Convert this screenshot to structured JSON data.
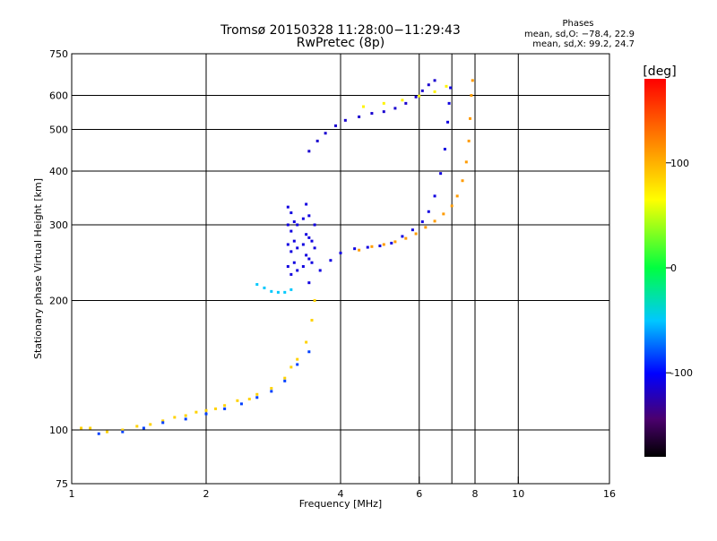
{
  "header": {
    "title_line1": "Tromsø 20150328 11:28:00−11:29:43",
    "title_line2": "RwPretec (8p)"
  },
  "phase_info": {
    "title": "Phases",
    "o_line": "mean, sd,O: −78.4, 22.9",
    "x_line": "mean, sd,X:  99.2, 24.7"
  },
  "chart_data": {
    "type": "scatter",
    "xlabel": "Frequency [MHz]",
    "ylabel": "Stationary phase Virtual Height [km]",
    "xscale": "log",
    "yscale": "log",
    "xlim": [
      1,
      16
    ],
    "ylim": [
      75,
      750
    ],
    "x_ticks": [
      1,
      2,
      4,
      6,
      8,
      10,
      16
    ],
    "y_ticks": [
      75,
      100,
      200,
      300,
      400,
      500,
      600,
      750
    ],
    "x_grid": [
      2,
      4,
      6,
      7.1,
      8,
      10
    ],
    "y_grid": [
      100,
      200,
      300,
      400,
      500,
      600
    ],
    "colorbar": {
      "label": "[deg]",
      "range": [
        -180,
        180
      ],
      "ticks": [
        100,
        0,
        -100
      ]
    },
    "traces": [
      {
        "role": "E-region low",
        "phase_deg": 85,
        "points": [
          [
            1.05,
            101
          ],
          [
            1.1,
            101
          ],
          [
            1.2,
            99
          ],
          [
            1.3,
            100
          ],
          [
            1.4,
            102
          ],
          [
            1.5,
            103
          ],
          [
            1.6,
            105
          ],
          [
            1.7,
            107
          ],
          [
            1.8,
            108
          ],
          [
            1.9,
            110
          ],
          [
            2.0,
            111
          ],
          [
            2.1,
            112
          ],
          [
            2.2,
            114
          ],
          [
            2.35,
            117
          ],
          [
            2.5,
            118
          ],
          [
            2.6,
            121
          ],
          [
            2.8,
            125
          ],
          [
            3.0,
            132
          ],
          [
            3.1,
            140
          ],
          [
            3.2,
            146
          ],
          [
            3.35,
            160
          ],
          [
            3.45,
            180
          ],
          [
            3.5,
            200
          ]
        ]
      },
      {
        "role": "E-region low (O)",
        "phase_deg": -85,
        "points": [
          [
            1.15,
            98
          ],
          [
            1.3,
            99
          ],
          [
            1.45,
            101
          ],
          [
            1.6,
            104
          ],
          [
            1.8,
            106
          ],
          [
            2.0,
            109
          ],
          [
            2.2,
            112
          ],
          [
            2.4,
            115
          ],
          [
            2.6,
            119
          ],
          [
            2.8,
            123
          ],
          [
            3.0,
            130
          ],
          [
            3.2,
            142
          ],
          [
            3.4,
            152
          ]
        ]
      },
      {
        "role": "Es patch",
        "phase_deg": -50,
        "points": [
          [
            2.6,
            218
          ],
          [
            2.7,
            214
          ],
          [
            2.8,
            210
          ],
          [
            2.9,
            209
          ],
          [
            3.0,
            209
          ],
          [
            3.1,
            212
          ]
        ]
      },
      {
        "role": "Spread F column",
        "phase_deg": -110,
        "points": [
          [
            3.05,
            240
          ],
          [
            3.05,
            270
          ],
          [
            3.05,
            300
          ],
          [
            3.05,
            330
          ],
          [
            3.1,
            230
          ],
          [
            3.1,
            260
          ],
          [
            3.1,
            290
          ],
          [
            3.1,
            320
          ],
          [
            3.15,
            245
          ],
          [
            3.15,
            275
          ],
          [
            3.15,
            305
          ],
          [
            3.2,
            235
          ],
          [
            3.2,
            265
          ],
          [
            3.2,
            300
          ],
          [
            3.3,
            240
          ],
          [
            3.3,
            270
          ],
          [
            3.3,
            310
          ],
          [
            3.35,
            255
          ],
          [
            3.35,
            285
          ],
          [
            3.35,
            335
          ],
          [
            3.4,
            250
          ],
          [
            3.4,
            280
          ],
          [
            3.4,
            315
          ],
          [
            3.45,
            245
          ],
          [
            3.45,
            275
          ],
          [
            3.5,
            265
          ],
          [
            3.5,
            300
          ]
        ]
      },
      {
        "role": "F-layer O trace",
        "phase_deg": -110,
        "points": [
          [
            3.4,
            220
          ],
          [
            3.6,
            235
          ],
          [
            3.8,
            248
          ],
          [
            4.0,
            258
          ],
          [
            4.3,
            264
          ],
          [
            4.6,
            266
          ],
          [
            4.9,
            268
          ],
          [
            5.2,
            272
          ],
          [
            5.5,
            282
          ],
          [
            5.8,
            292
          ],
          [
            6.1,
            305
          ],
          [
            6.3,
            322
          ],
          [
            6.5,
            350
          ],
          [
            6.7,
            395
          ],
          [
            6.85,
            450
          ],
          [
            6.95,
            520
          ],
          [
            7.0,
            575
          ],
          [
            7.05,
            625
          ]
        ]
      },
      {
        "role": "F-layer X trace",
        "phase_deg": 110,
        "points": [
          [
            4.4,
            262
          ],
          [
            4.7,
            267
          ],
          [
            5.0,
            270
          ],
          [
            5.3,
            274
          ],
          [
            5.6,
            279
          ],
          [
            5.9,
            286
          ],
          [
            6.2,
            296
          ],
          [
            6.5,
            306
          ],
          [
            6.8,
            318
          ],
          [
            7.1,
            332
          ],
          [
            7.3,
            350
          ],
          [
            7.5,
            380
          ],
          [
            7.65,
            420
          ],
          [
            7.75,
            470
          ],
          [
            7.8,
            530
          ],
          [
            7.85,
            600
          ],
          [
            7.9,
            650
          ]
        ]
      },
      {
        "role": "Upper branch",
        "phase_deg": -115,
        "points": [
          [
            3.4,
            445
          ],
          [
            3.55,
            470
          ],
          [
            3.7,
            490
          ],
          [
            3.9,
            510
          ],
          [
            4.1,
            525
          ],
          [
            4.4,
            535
          ],
          [
            4.7,
            545
          ],
          [
            5.0,
            550
          ],
          [
            5.3,
            560
          ],
          [
            5.6,
            575
          ],
          [
            5.9,
            595
          ],
          [
            6.1,
            615
          ],
          [
            6.3,
            635
          ],
          [
            6.5,
            650
          ]
        ]
      },
      {
        "role": "Upper branch X",
        "phase_deg": 70,
        "points": [
          [
            4.5,
            565
          ],
          [
            5.0,
            575
          ],
          [
            5.5,
            585
          ],
          [
            6.0,
            598
          ],
          [
            6.5,
            612
          ],
          [
            6.9,
            630
          ]
        ]
      }
    ]
  }
}
